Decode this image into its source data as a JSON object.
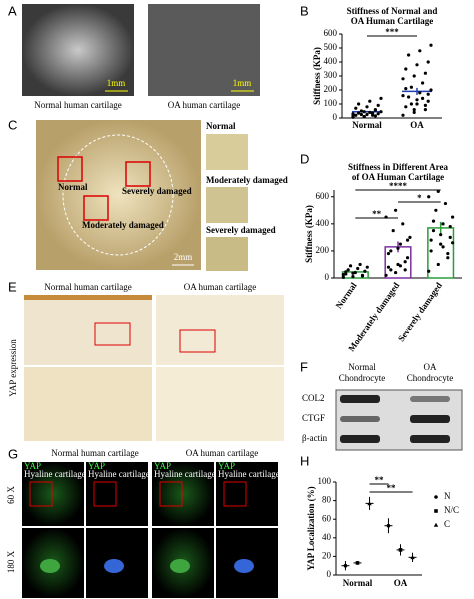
{
  "panel_labels": [
    "A",
    "B",
    "C",
    "D",
    "E",
    "F",
    "G",
    "H"
  ],
  "panel_a": {
    "captions": [
      "Normal human cartilage",
      "OA human cartilage"
    ],
    "scale_bars": [
      "1mm",
      "1mm"
    ]
  },
  "panel_c": {
    "region_labels": [
      "Normal",
      "Moderately damaged",
      "Severely damaged"
    ],
    "scale_bar": "2mm",
    "inset_titles": [
      "Normal",
      "Moderately damaged",
      "Severely damaged"
    ]
  },
  "panel_e": {
    "column_titles": [
      "Normal human cartilage",
      "OA human cartilage"
    ],
    "row_title": "YAP expression"
  },
  "panel_f": {
    "column_titles": [
      [
        "Normal",
        "Chondrocyte"
      ],
      [
        "OA",
        "Chondrocyte"
      ]
    ],
    "bands": [
      "COL2",
      "CTGF",
      "β-actin"
    ]
  },
  "panel_g": {
    "column_titles": [
      "Normal human cartilage",
      "OA human cartilage"
    ],
    "row_titles": [
      "60 X",
      "180 X"
    ],
    "stain_label": "YAP",
    "tissue_label": "Hyaline cartilage"
  },
  "chart_data": [
    {
      "type": "dot",
      "title": [
        "Stiffness of Normal and",
        "OA Human Cartilage"
      ],
      "y_label": "Stiffness (KPa)",
      "categories": [
        "Normal",
        "OA"
      ],
      "points": [
        [
          5,
          10,
          15,
          20,
          25,
          30,
          35,
          40,
          45,
          50,
          20,
          30,
          10,
          60,
          70,
          80,
          90,
          100,
          120,
          140,
          25,
          35,
          15,
          45,
          55
        ],
        [
          20,
          40,
          60,
          80,
          100,
          120,
          150,
          180,
          200,
          220,
          250,
          280,
          300,
          320,
          350,
          380,
          400,
          450,
          480,
          520,
          100,
          140,
          160,
          60,
          90,
          210,
          130,
          170
        ]
      ],
      "means": [
        45,
        190
      ],
      "errors": [
        6,
        25
      ],
      "colors": [
        "#1f3fb0",
        "#1f3fb0"
      ],
      "ylim": [
        0,
        600
      ],
      "yticks": [
        0,
        100,
        200,
        300,
        400,
        500,
        600
      ],
      "annotations": [
        "***"
      ]
    },
    {
      "type": "dot",
      "title": [
        "Stiffness in Different Area",
        "of OA Human Cartilage"
      ],
      "y_label": "Stiffness (KPa)",
      "categories": [
        "Normal",
        "Moderately damaged",
        "Severely damaged"
      ],
      "points": [
        [
          5,
          10,
          20,
          30,
          40,
          50,
          60,
          70,
          80,
          90,
          100,
          25,
          35,
          15,
          45
        ],
        [
          20,
          40,
          60,
          80,
          100,
          150,
          200,
          250,
          300,
          350,
          400,
          450,
          500,
          120,
          180,
          220,
          280,
          60,
          90
        ],
        [
          50,
          100,
          150,
          200,
          250,
          300,
          350,
          400,
          450,
          500,
          550,
          600,
          640,
          180,
          280,
          320,
          380,
          420,
          230,
          260
        ]
      ],
      "means": [
        45,
        230,
        370
      ],
      "errors": [
        8,
        40,
        45
      ],
      "colors": [
        "#2a9d3a",
        "#7b2fa0",
        "#2a9d3a"
      ],
      "ylim": [
        0,
        650
      ],
      "yticks": [
        0,
        200,
        400,
        600
      ],
      "annotations": [
        "**",
        "****",
        "*"
      ]
    },
    {
      "type": "errorbar",
      "y_label": "YAP Localization (%)",
      "categories": [
        "Normal",
        "OA"
      ],
      "series": [
        {
          "name": "N",
          "values": [
            10,
            53
          ],
          "errors": [
            5,
            8
          ]
        },
        {
          "name": "N/C",
          "values": [
            13,
            27
          ],
          "errors": [
            2,
            6
          ]
        },
        {
          "name": "C",
          "values": [
            77,
            19
          ],
          "errors": [
            7,
            5
          ]
        }
      ],
      "ylim": [
        0,
        100
      ],
      "yticks": [
        0,
        20,
        40,
        60,
        80,
        100
      ],
      "annotations": [
        "**",
        "**"
      ]
    }
  ]
}
